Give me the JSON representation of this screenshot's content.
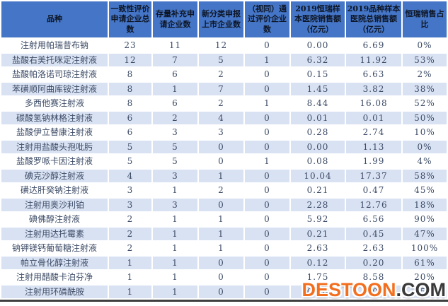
{
  "chart_data": {
    "type": "table",
    "title": "",
    "columns": [
      "品种",
      "一致性评价申请企业总数",
      "存量补充申请企业数",
      "新分类申报上市企业数",
      "（视同）通过评价企业数",
      "2019恒瑞样本医院销售额（亿元）",
      "2019品种样本医院总销售额（亿元）",
      "恒瑞销售占比"
    ],
    "rows": [
      [
        "注射用帕瑞昔布钠",
        "23",
        "11",
        "12",
        "0",
        "0.00",
        "6.69",
        "0%"
      ],
      [
        "盐酸右美托咪定注射液",
        "12",
        "7",
        "5",
        "1",
        "6.32",
        "11.92",
        "53%"
      ],
      [
        "盐酸帕洛诺司琼注射液",
        "8",
        "6",
        "2",
        "0",
        "0.15",
        "6.63",
        "2%"
      ],
      [
        "苯磺顺阿曲库铵注射液",
        "8",
        "1",
        "7",
        "0",
        "1.45",
        "3.82",
        "38%"
      ],
      [
        "多西他赛注射液",
        "8",
        "6",
        "2",
        "1",
        "8.44",
        "16.08",
        "52%"
      ],
      [
        "碳酸氢钠林格注射液",
        "6",
        "2",
        "4",
        "0",
        "0.01",
        "0.01",
        "50%"
      ],
      [
        "盐酸伊立替康注射液",
        "6",
        "3",
        "3",
        "0",
        "0.28",
        "2.74",
        "10%"
      ],
      [
        "注射用盐酸头孢吡肟",
        "5",
        "5",
        "0",
        "0",
        "0.00",
        "1.13",
        "0%"
      ],
      [
        "盐酸罗哌卡因注射液",
        "5",
        "5",
        "0",
        "1",
        "0.08",
        "1.99",
        "4%"
      ],
      [
        "碘克沙醇注射液",
        "4",
        "3",
        "1",
        "0",
        "10.04",
        "17.37",
        "58%"
      ],
      [
        "磺达肝癸钠注射液",
        "3",
        "1",
        "2",
        "0",
        "0.21",
        "0.47",
        "45%"
      ],
      [
        "注射用奥沙利铂",
        "3",
        "3",
        "0",
        "0",
        "2.28",
        "12.76",
        "18%"
      ],
      [
        "碘佛醇注射液",
        "2",
        "1",
        "1",
        "0",
        "5.92",
        "6.56",
        "90%"
      ],
      [
        "注射用达托霉素",
        "2",
        "1",
        "1",
        "0",
        "0.21",
        "0.45",
        "47%"
      ],
      [
        "钠钾镁钙葡萄糖注射液",
        "2",
        "1",
        "1",
        "0",
        "2.63",
        "2.63",
        "100%"
      ],
      [
        "帕立骨化醇注射液",
        "1",
        "1",
        "0",
        "0",
        "0.12",
        "0.20",
        "61%"
      ],
      [
        "注射用醋酸卡泊芬净",
        "1",
        "1",
        "0",
        "0",
        "1.75",
        "8.58",
        "20%"
      ],
      [
        "注射用环磷酰胺",
        "1",
        "1",
        "0",
        "0",
        "0.26",
        "1.02",
        "25%"
      ]
    ],
    "layout_hints": {
      "striped_rows": "even rows light blue",
      "grid": "white 2px separators",
      "bottom_rule": true
    }
  },
  "colors": {
    "header_bg": "#4475C6",
    "header_text": "#0E1626",
    "stripe_bg": "#D9E2F3",
    "body_text": "#3C4B66",
    "bottom_border": "#3F3F3F",
    "watermark_brand": "#F26F1F",
    "watermark_suffix": "#3A3A3A"
  },
  "watermark": {
    "brand": "DESTOON",
    "suffix": ".COM"
  }
}
